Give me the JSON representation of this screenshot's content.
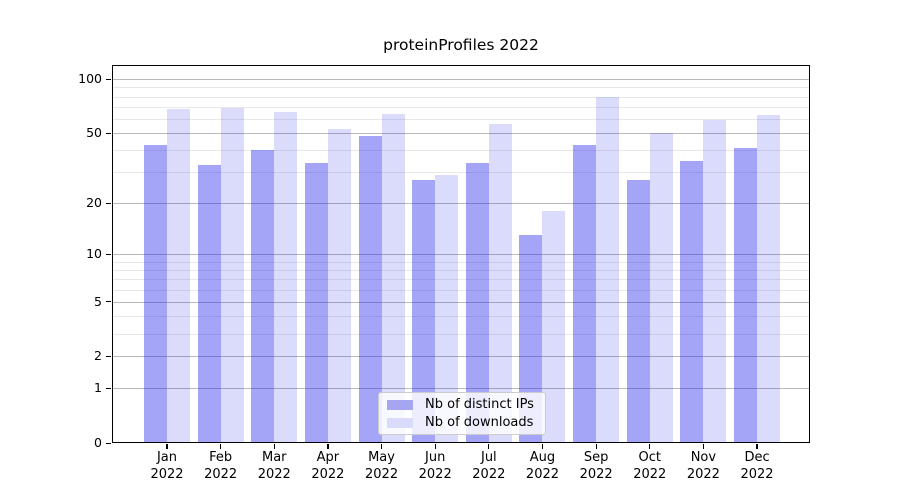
{
  "chart_data": {
    "type": "bar",
    "title": "proteinProfiles 2022",
    "categories": [
      "Jan",
      "Feb",
      "Mar",
      "Apr",
      "May",
      "Jun",
      "Jul",
      "Aug",
      "Sep",
      "Oct",
      "Nov",
      "Dec"
    ],
    "year_label": "2022",
    "series": [
      {
        "id": "distinct_ips",
        "name": "Nb of distinct IPs",
        "values": [
          43,
          33,
          40,
          34,
          48,
          27,
          34,
          13,
          43,
          27,
          35,
          41
        ],
        "color": "rgba(40,40,235,0.42)",
        "solid_color": "#a5a5f2"
      },
      {
        "id": "downloads",
        "name": "Nb of downloads",
        "values": [
          68,
          69,
          66,
          53,
          64,
          29,
          56,
          18,
          80,
          50,
          59,
          63
        ],
        "color": "rgba(40,40,235,0.17)",
        "solid_color": "#dadafa"
      }
    ],
    "xlabel": "",
    "ylabel": "",
    "yscale": "log1p",
    "ylim": [
      0,
      120
    ],
    "yticks": [
      0,
      1,
      2,
      5,
      10,
      20,
      50,
      100
    ],
    "yticks_minor": [
      3,
      4,
      6,
      7,
      8,
      9,
      30,
      40,
      60,
      70,
      80,
      90
    ],
    "grid": "on",
    "legend_position": "lower center",
    "axis_color": "#000000",
    "grid_major_color": "#b9b9b9",
    "grid_minor_color": "#e8e8e8"
  }
}
